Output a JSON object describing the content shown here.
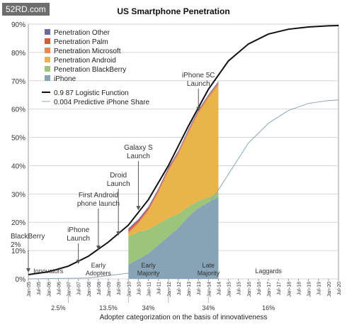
{
  "watermark": "52RD.com",
  "chart_data": {
    "type": "area",
    "title": "US Smartphone Penetration",
    "xlabel": "Adopter categorization on the basis of innovativeness",
    "ylabel": "",
    "ylim": [
      0,
      90
    ],
    "y_ticks": [
      "0%",
      "10%",
      "20%",
      "30%",
      "40%",
      "50%",
      "60%",
      "70%",
      "80%",
      "90%"
    ],
    "grid": true,
    "legend_position": "top-left",
    "x_tick_labels": [
      "Jan-05",
      "Jul-05",
      "Jan-06",
      "Jul-06",
      "Jan-07",
      "Jul-07",
      "Jan-08",
      "Jul-08",
      "Jan-09",
      "Jul-09",
      "Jan-10",
      "Jul-10",
      "Jan-11",
      "Jul-11",
      "Jan-12",
      "Jul-12",
      "Jan-13",
      "Jul-13",
      "Jan-14",
      "Jul-14",
      "Jan-15",
      "Jul-15",
      "Jan-16",
      "Jul-16",
      "Jan-17",
      "Jul-17",
      "Jan-18",
      "Jul-18",
      "Jan-19",
      "Jul-19",
      "Jan-20",
      "Jul-20"
    ],
    "legend": [
      {
        "label": "Penetration Other",
        "color": "#6b6a9e"
      },
      {
        "label": "Penetration Palm",
        "color": "#d8573a"
      },
      {
        "label": "Penetration Microsoft",
        "color": "#e48a57"
      },
      {
        "label": "Penetration Android",
        "color": "#e9b44a"
      },
      {
        "label": "Penetration BlackBerry",
        "color": "#9cc47a"
      },
      {
        "label": "iPhone",
        "color": "#86a4b5"
      },
      {
        "label": "0.9 87 Logistic Function",
        "color": "#111111"
      },
      {
        "label": "0.004 Predictive iPhone Share",
        "color": "#8aa5b8"
      }
    ],
    "stacked_series": {
      "x": [
        "Jan-10",
        "Jul-10",
        "Jan-11",
        "Jul-11",
        "Jan-12",
        "Jul-12",
        "Jan-13",
        "Jul-13",
        "Jan-14",
        "Jul-14"
      ],
      "series": [
        {
          "name": "iPhone",
          "values": [
            5,
            7,
            9,
            12,
            15,
            18,
            22,
            25,
            27,
            29
          ]
        },
        {
          "name": "Penetration BlackBerry",
          "values": [
            10,
            9.5,
            8.5,
            7.5,
            6.5,
            5,
            3.5,
            2.5,
            1.8,
            1.5
          ]
        },
        {
          "name": "Penetration Android",
          "values": [
            1,
            3,
            6.5,
            11,
            16.5,
            21,
            26,
            31,
            35,
            38
          ]
        },
        {
          "name": "Penetration Microsoft",
          "values": [
            0.6,
            0.6,
            0.6,
            0.6,
            0.7,
            0.7,
            0.8,
            0.8,
            0.8,
            0.8
          ]
        },
        {
          "name": "Penetration Palm",
          "values": [
            0.8,
            0.6,
            0.5,
            0.4,
            0.3,
            0.2,
            0.2,
            0.1,
            0.1,
            0.1
          ]
        },
        {
          "name": "Penetration Other",
          "values": [
            0.4,
            0.4,
            0.4,
            0.4,
            0.4,
            0.4,
            0.4,
            0.4,
            0.4,
            0.4
          ]
        }
      ]
    },
    "lines": [
      {
        "name": "0.9 87 Logistic Function",
        "x": [
          "Jan-05",
          "Jan-06",
          "Jan-07",
          "Jan-08",
          "Jan-09",
          "Jan-10",
          "Jan-11",
          "Jan-12",
          "Jan-13",
          "Jan-14",
          "Jan-15",
          "Jan-16",
          "Jan-17",
          "Jan-18",
          "Jan-19",
          "Jan-20",
          "Jul-20"
        ],
        "values": [
          1.5,
          2.5,
          4.5,
          8,
          13,
          19,
          28,
          40,
          54,
          67,
          77,
          83,
          86.5,
          88.2,
          89,
          89.4,
          89.5
        ]
      },
      {
        "name": "0.004 Predictive iPhone Share",
        "x": [
          "Jan-05",
          "Jan-08",
          "Jan-10",
          "Jan-11",
          "Jan-12",
          "Jan-13",
          "Jan-14",
          "Jan-15",
          "Jan-16",
          "Jan-17",
          "Jan-18",
          "Jan-19",
          "Jan-20",
          "Jul-20"
        ],
        "values": [
          0,
          0.3,
          2,
          5,
          10,
          17,
          26,
          37,
          48,
          55,
          59.5,
          62,
          63,
          63.2
        ]
      }
    ],
    "annotations": [
      {
        "text": "BlackBerry",
        "sub": "2%",
        "x": "Jan-05",
        "y": 2
      },
      {
        "text": "iPhone",
        "sub": "Launch",
        "x": "Jul-07",
        "y": 5
      },
      {
        "text": "First Android",
        "sub": "phone launch",
        "x": "Jul-08",
        "y": 10
      },
      {
        "text": "Droid",
        "sub": "Launch",
        "x": "Jul-09",
        "y": 15
      },
      {
        "text": "Galaxy S",
        "sub": "Launch",
        "x": "Jul-10",
        "y": 24
      },
      {
        "text": "iPhone 5C",
        "sub": "Launch",
        "x": "Jul-13",
        "y": 59
      }
    ],
    "categories_labels": [
      {
        "text": "Innovators",
        "x": "Jan-06"
      },
      {
        "text": "Early",
        "sub": "Adopters",
        "x": "Jul-08"
      },
      {
        "text": "Early",
        "sub": "Majority",
        "x": "Jan-11"
      },
      {
        "text": "Late",
        "sub": "Majority",
        "x": "Jan-14"
      },
      {
        "text": "Laggards",
        "x": "Jan-17"
      }
    ],
    "category_boundaries": [
      "Jan-07",
      "Jan-10",
      "Jan-12",
      "Jan-14"
    ],
    "category_percentages": [
      {
        "text": "2.5%",
        "x": "Jul-06"
      },
      {
        "text": "13.5%",
        "x": "Jan-09"
      },
      {
        "text": "34%",
        "x": "Jan-11"
      },
      {
        "text": "34%",
        "x": "Jan-14"
      },
      {
        "text": "16%",
        "x": "Jan-17"
      }
    ]
  }
}
